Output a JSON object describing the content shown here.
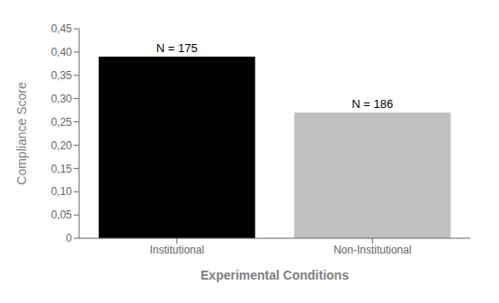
{
  "chart_data": {
    "type": "bar",
    "categories": [
      "Institutional",
      "Non-Institutional"
    ],
    "values": [
      0.39,
      0.27
    ],
    "colors": [
      "#000000",
      "#C0C0C0"
    ],
    "annotations": [
      "N = 175",
      "N = 186"
    ],
    "xlabel": "Experimental Conditions",
    "ylabel": "Compliance Score",
    "ylim": [
      0,
      0.45
    ],
    "yticks": [
      0,
      {
        "value": 0.05,
        "label": "0,05"
      },
      {
        "value": 0.1,
        "label": "0,10"
      },
      {
        "value": 0.15,
        "label": "0,15"
      },
      {
        "value": 0.2,
        "label": "0,20"
      },
      {
        "value": 0.25,
        "label": "0,25"
      },
      {
        "value": 0.3,
        "label": "0,30"
      },
      {
        "value": 0.35,
        "label": "0,35"
      },
      {
        "value": 0.4,
        "label": "0,40"
      },
      {
        "value": 0.45,
        "label": "0,45"
      }
    ],
    "grid": false
  }
}
